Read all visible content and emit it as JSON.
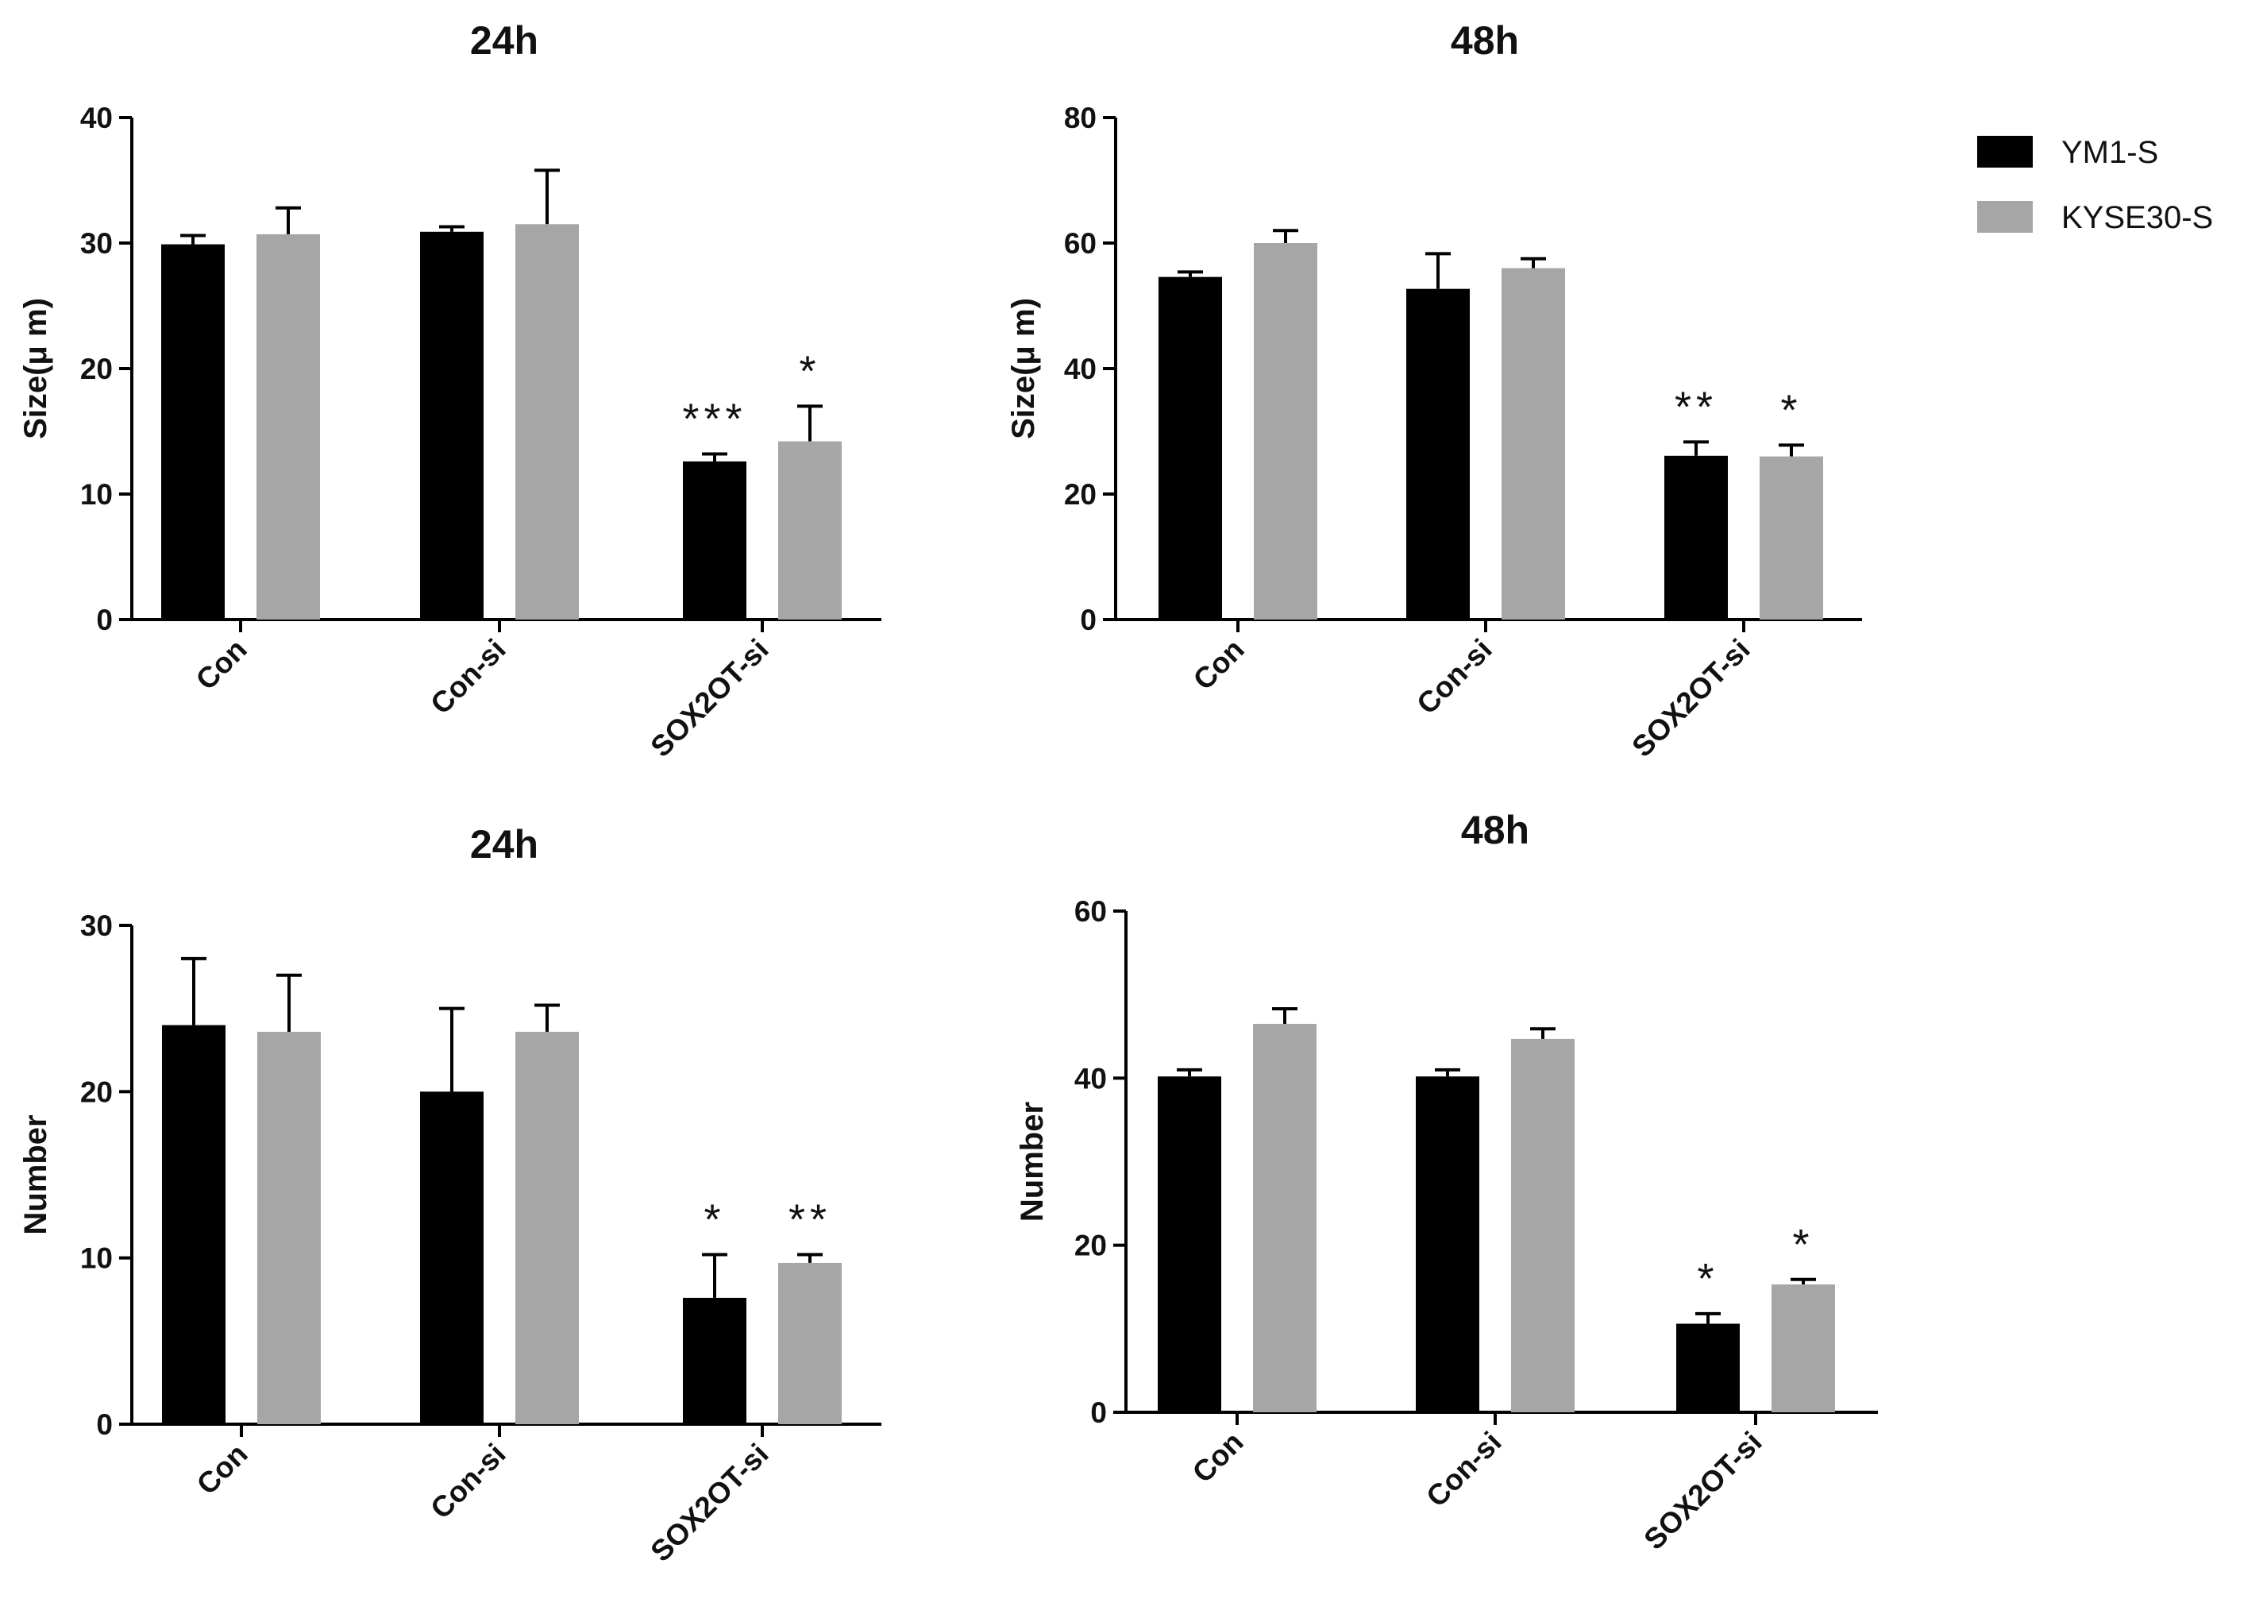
{
  "legend": [
    {
      "label": "YM1-S",
      "color": "#000000"
    },
    {
      "label": "KYSE30-S",
      "color": "#a6a6a6"
    }
  ],
  "chart_data": [
    {
      "type": "bar",
      "title": "24h",
      "ylabel": "Size(μ m)",
      "categories": [
        "Con",
        "Con-si",
        "SOX2OT-si"
      ],
      "ylim": [
        0,
        40
      ],
      "yticks": [
        0,
        10,
        20,
        30,
        40
      ],
      "series": [
        {
          "name": "YM1-S",
          "values": [
            29.9,
            30.9,
            12.6
          ],
          "errors": [
            0.7,
            0.4,
            0.6
          ]
        },
        {
          "name": "KYSE30-S",
          "values": [
            30.7,
            31.5,
            14.2
          ],
          "errors": [
            2.1,
            4.3,
            2.8
          ]
        }
      ],
      "significance": [
        [
          "",
          "",
          "***"
        ],
        [
          "",
          "",
          "*"
        ]
      ]
    },
    {
      "type": "bar",
      "title": "48h",
      "ylabel": "Size(μ m)",
      "categories": [
        "Con",
        "Con-si",
        "SOX2OT-si"
      ],
      "ylim": [
        0,
        80
      ],
      "yticks": [
        0,
        20,
        40,
        60,
        80
      ],
      "series": [
        {
          "name": "YM1-S",
          "values": [
            54.6,
            52.7,
            26.1
          ],
          "errors": [
            0.8,
            5.6,
            2.2
          ]
        },
        {
          "name": "KYSE30-S",
          "values": [
            60.0,
            56.0,
            26.0
          ],
          "errors": [
            2.0,
            1.5,
            1.8
          ]
        }
      ],
      "significance": [
        [
          "",
          "",
          "**"
        ],
        [
          "",
          "",
          "*"
        ]
      ]
    },
    {
      "type": "bar",
      "title": "24h",
      "ylabel": "Number",
      "categories": [
        "Con",
        "Con-si",
        "SOX2OT-si"
      ],
      "ylim": [
        0,
        30
      ],
      "yticks": [
        0,
        10,
        20,
        30
      ],
      "series": [
        {
          "name": "YM1-S",
          "values": [
            24.0,
            20.0,
            7.6
          ],
          "errors": [
            4.0,
            5.0,
            2.6
          ]
        },
        {
          "name": "KYSE30-S",
          "values": [
            23.6,
            23.6,
            9.7
          ],
          "errors": [
            3.4,
            1.6,
            0.5
          ]
        }
      ],
      "significance": [
        [
          "",
          "",
          "*"
        ],
        [
          "",
          "",
          "**"
        ]
      ]
    },
    {
      "type": "bar",
      "title": "48h",
      "ylabel": "Number",
      "categories": [
        "Con",
        "Con-si",
        "SOX2OT-si"
      ],
      "ylim": [
        0,
        60
      ],
      "yticks": [
        0,
        20,
        40,
        60
      ],
      "series": [
        {
          "name": "YM1-S",
          "values": [
            40.2,
            40.2,
            10.6
          ],
          "errors": [
            0.8,
            0.8,
            1.2
          ]
        },
        {
          "name": "KYSE30-S",
          "values": [
            46.5,
            44.7,
            15.3
          ],
          "errors": [
            1.8,
            1.2,
            0.6
          ]
        }
      ],
      "significance": [
        [
          "",
          "",
          "*"
        ],
        [
          "",
          "",
          "*"
        ]
      ]
    }
  ]
}
